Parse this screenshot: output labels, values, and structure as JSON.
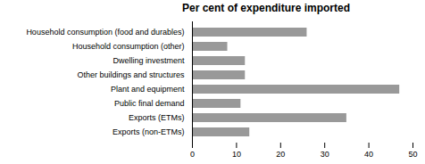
{
  "chart_data": {
    "type": "bar",
    "orientation": "horizontal",
    "title": "Per cent of expenditure imported",
    "categories": [
      "Household consumption (food and durables)",
      "Household consumption (other)",
      "Dwelling investment",
      "Other buildings and structures",
      "Plant and equipment",
      "Public final demand",
      "Exports (ETMs)",
      "Exports (non-ETMs)"
    ],
    "values": [
      26,
      8,
      12,
      12,
      47,
      11,
      35,
      13
    ],
    "color": "#999999",
    "xlim": [
      0,
      50
    ],
    "xticks": [
      0,
      10,
      20,
      30,
      40,
      50
    ],
    "grid": false
  }
}
